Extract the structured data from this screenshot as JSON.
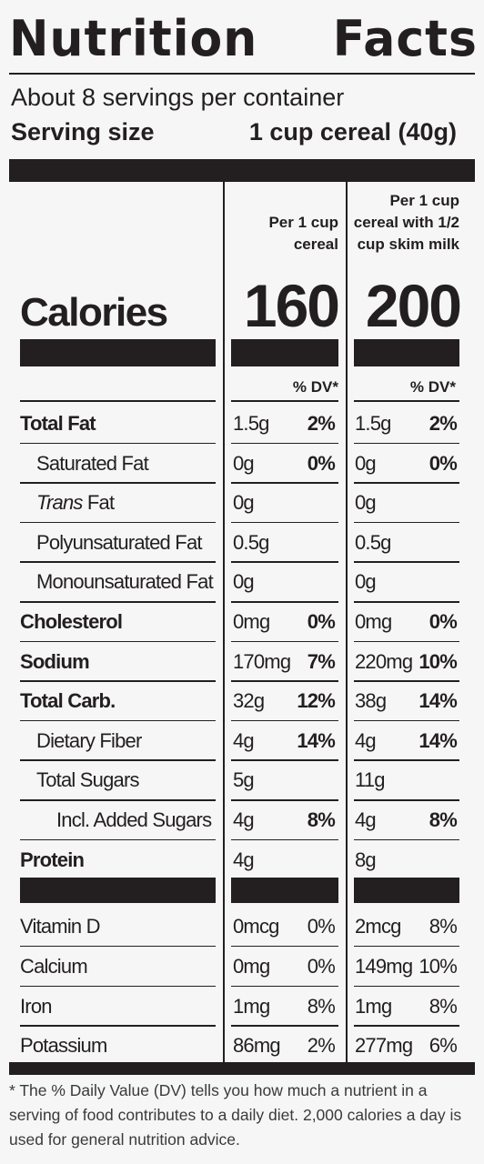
{
  "header": {
    "title_word1": "Nutrition",
    "title_word2": "Facts",
    "servings_per_container": "About 8 servings per container",
    "serving_size_label": "Serving size",
    "serving_size_value": "1 cup cereal (40g)"
  },
  "columns": {
    "col1_header": [
      "Per 1 cup",
      "cereal"
    ],
    "col2_header": [
      "Per 1 cup",
      "cereal with 1/2",
      "cup skim milk"
    ],
    "dv_label": "% DV*"
  },
  "calories": {
    "label": "Calories",
    "col1": "160",
    "col2": "200"
  },
  "nutrients": [
    {
      "name": "Total Fat",
      "bold": true,
      "indent": 0,
      "c1_amt": "1.5g",
      "c1_dv": "2%",
      "c2_amt": "1.5g",
      "c2_dv": "2%"
    },
    {
      "name": "Saturated Fat",
      "bold": false,
      "indent": 1,
      "c1_amt": "0g",
      "c1_dv": "0%",
      "c2_amt": "0g",
      "c2_dv": "0%"
    },
    {
      "name_italic": "Trans",
      "name": " Fat",
      "bold": false,
      "indent": 1,
      "c1_amt": "0g",
      "c1_dv": "",
      "c2_amt": "0g",
      "c2_dv": ""
    },
    {
      "name": "Polyunsaturated Fat",
      "bold": false,
      "indent": 1,
      "c1_amt": "0.5g",
      "c1_dv": "",
      "c2_amt": "0.5g",
      "c2_dv": ""
    },
    {
      "name": "Monounsaturated Fat",
      "bold": false,
      "indent": 1,
      "c1_amt": "0g",
      "c1_dv": "",
      "c2_amt": "0g",
      "c2_dv": ""
    },
    {
      "name": "Cholesterol",
      "bold": true,
      "indent": 0,
      "c1_amt": "0mg",
      "c1_dv": "0%",
      "c2_amt": "0mg",
      "c2_dv": "0%"
    },
    {
      "name": "Sodium",
      "bold": true,
      "indent": 0,
      "c1_amt": "170mg",
      "c1_dv": "7%",
      "c2_amt": "220mg",
      "c2_dv": "10%"
    },
    {
      "name": "Total Carb.",
      "bold": true,
      "indent": 0,
      "c1_amt": "32g",
      "c1_dv": "12%",
      "c2_amt": "38g",
      "c2_dv": "14%"
    },
    {
      "name": "Dietary Fiber",
      "bold": false,
      "indent": 1,
      "c1_amt": "4g",
      "c1_dv": "14%",
      "c2_amt": "4g",
      "c2_dv": "14%"
    },
    {
      "name": "Total Sugars",
      "bold": false,
      "indent": 1,
      "c1_amt": "5g",
      "c1_dv": "",
      "c2_amt": "11g",
      "c2_dv": ""
    },
    {
      "name": "Incl. Added Sugars",
      "bold": false,
      "indent": 2,
      "c1_amt": "4g",
      "c1_dv": "8%",
      "c2_amt": "4g",
      "c2_dv": "8%"
    },
    {
      "name": "Protein",
      "bold": true,
      "indent": 0,
      "c1_amt": "4g",
      "c1_dv": "",
      "c2_amt": "8g",
      "c2_dv": ""
    }
  ],
  "micronutrients": [
    {
      "name": "Vitamin D",
      "c1_amt": "0mcg",
      "c1_dv": "0%",
      "c2_amt": "2mcg",
      "c2_dv": "8%"
    },
    {
      "name": "Calcium",
      "c1_amt": "0mg",
      "c1_dv": "0%",
      "c2_amt": "149mg",
      "c2_dv": "10%"
    },
    {
      "name": "Iron",
      "c1_amt": "1mg",
      "c1_dv": "8%",
      "c2_amt": "1mg",
      "c2_dv": "8%"
    },
    {
      "name": "Potassium",
      "c1_amt": "86mg",
      "c1_dv": "2%",
      "c2_amt": "277mg",
      "c2_dv": "6%"
    }
  ],
  "footnote": "* The % Daily Value (DV) tells you how much a nutrient in a serving of food contributes to a daily diet. 2,000 calories a day is used for general nutrition advice.",
  "colors": {
    "ink": "#231f20",
    "background": "#f6f6f6"
  }
}
